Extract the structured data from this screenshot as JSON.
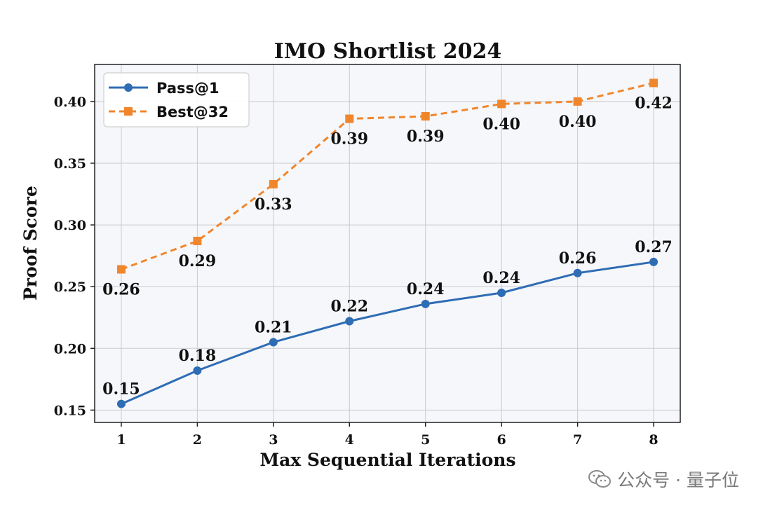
{
  "chart_data": {
    "type": "line",
    "title": "IMO Shortlist 2024",
    "xlabel": "Max Sequential Iterations",
    "ylabel": "Proof Score",
    "x": [
      1,
      2,
      3,
      4,
      5,
      6,
      7,
      8
    ],
    "xticks": [
      "1",
      "2",
      "3",
      "4",
      "5",
      "6",
      "7",
      "8"
    ],
    "xlim": [
      0.65,
      8.35
    ],
    "ylim": [
      0.14,
      0.43
    ],
    "yticks": [
      0.15,
      0.2,
      0.25,
      0.3,
      0.35,
      0.4
    ],
    "ytick_labels": [
      "0.15",
      "0.20",
      "0.25",
      "0.30",
      "0.35",
      "0.40"
    ],
    "grid": true,
    "legend_position": "top-left",
    "series": [
      {
        "name": "Pass@1",
        "color": "#2e6db4",
        "style": "solid",
        "marker": "circle",
        "values": [
          0.155,
          0.182,
          0.205,
          0.222,
          0.236,
          0.245,
          0.261,
          0.27
        ],
        "labels": [
          "0.15",
          "0.18",
          "0.21",
          "0.22",
          "0.24",
          "0.24",
          "0.26",
          "0.27"
        ],
        "label_position": "above"
      },
      {
        "name": "Best@32",
        "color": "#f0862c",
        "style": "dashed",
        "marker": "square",
        "values": [
          0.264,
          0.287,
          0.333,
          0.386,
          0.388,
          0.398,
          0.4,
          0.415
        ],
        "labels": [
          "0.26",
          "0.29",
          "0.33",
          "0.39",
          "0.39",
          "0.40",
          "0.40",
          "0.42"
        ],
        "label_position": "below"
      }
    ]
  },
  "watermark": {
    "text": "公众号 · 量子位",
    "icon": "wechat-icon"
  }
}
